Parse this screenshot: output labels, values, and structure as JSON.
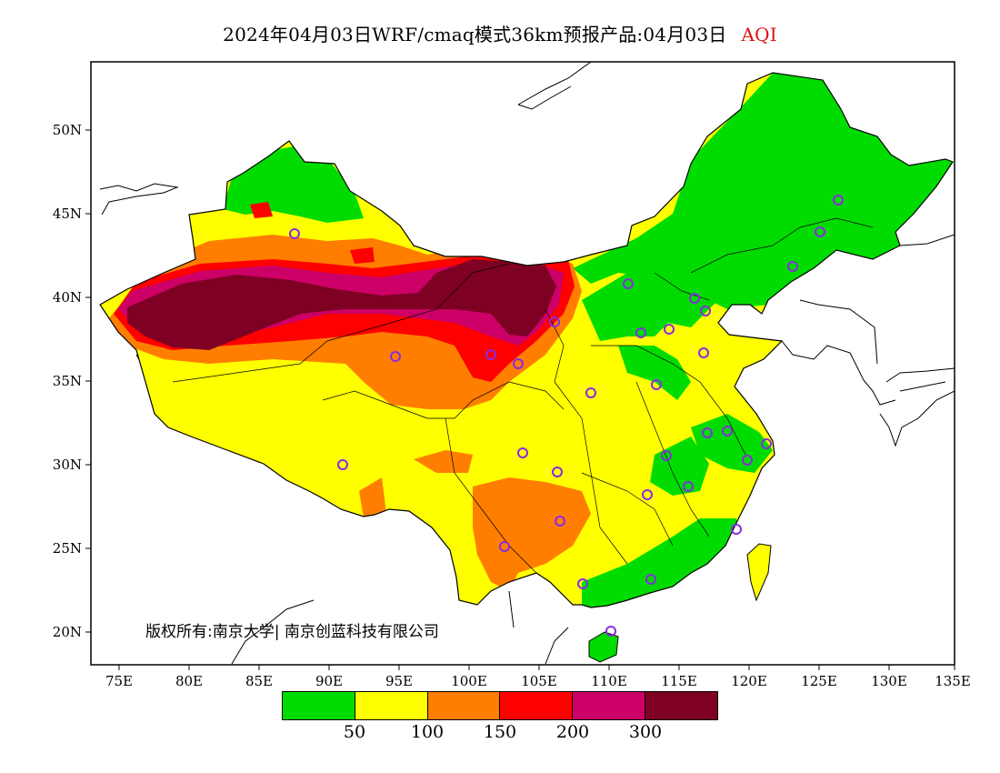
{
  "title": {
    "main": "2024年04月03日WRF/cmaq模式36km预报产品:04月03日",
    "variable": "AQI"
  },
  "axes": {
    "x_ticks": [
      "75E",
      "80E",
      "85E",
      "90E",
      "95E",
      "100E",
      "105E",
      "110E",
      "115E",
      "120E",
      "125E",
      "130E",
      "135E"
    ],
    "y_ticks": [
      "50N",
      "45N",
      "40N",
      "35N",
      "30N",
      "25N",
      "20N"
    ]
  },
  "copyright": "版权所有:南京大学| 南京创蓝科技有限公司",
  "legend": {
    "colors": [
      "#00dc00",
      "#ffff00",
      "#ff7e00",
      "#ff0000",
      "#cc0066",
      "#7e0023"
    ],
    "labels": [
      "50",
      "100",
      "150",
      "200",
      "300"
    ]
  },
  "colors": {
    "good": "#00dc00",
    "moderate": "#ffff00",
    "sensitive": "#ff7e00",
    "unhealthy": "#ff0000",
    "very_unhealthy": "#cc0066",
    "hazardous": "#7e0023",
    "station_marker": "#8a2be2"
  }
}
